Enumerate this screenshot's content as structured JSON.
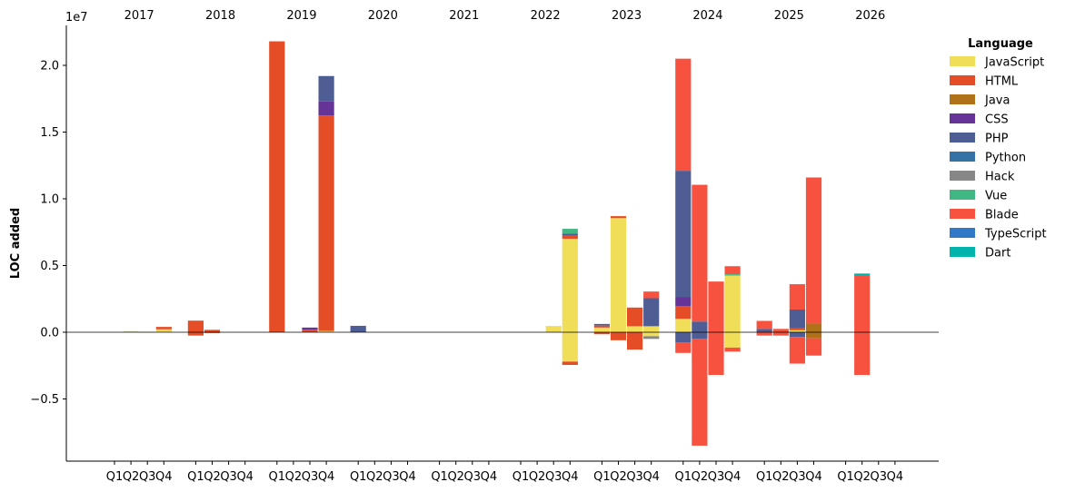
{
  "chart_data": {
    "type": "bar",
    "stacked": true,
    "diverging": true,
    "scale_label": "1e7",
    "ylabel": "LOC added",
    "ylim": [
      -9600000,
      23000000
    ],
    "y_ticks": [
      -5000000,
      0,
      5000000,
      10000000,
      15000000,
      20000000
    ],
    "y_tick_labels": [
      "−0.5",
      "0.0",
      "0.5",
      "1.0",
      "1.5",
      "2.0"
    ],
    "years": [
      "2017",
      "2018",
      "2019",
      "2020",
      "2021",
      "2022",
      "2023",
      "2024",
      "2025",
      "2026"
    ],
    "quarters": [
      "Q1",
      "Q2",
      "Q3",
      "Q4"
    ],
    "legend": {
      "title": "Language",
      "position": "right",
      "items": [
        {
          "name": "JavaScript",
          "color": "#f0de59"
        },
        {
          "name": "HTML",
          "color": "#e44d26"
        },
        {
          "name": "Java",
          "color": "#b07219"
        },
        {
          "name": "CSS",
          "color": "#663399"
        },
        {
          "name": "PHP",
          "color": "#4f5d95"
        },
        {
          "name": "Python",
          "color": "#3572a5"
        },
        {
          "name": "Hack",
          "color": "#878787"
        },
        {
          "name": "Vue",
          "color": "#41b883"
        },
        {
          "name": "Blade",
          "color": "#f7523f"
        },
        {
          "name": "TypeScript",
          "color": "#3178c6"
        },
        {
          "name": "Dart",
          "color": "#00b4ab"
        }
      ]
    },
    "bars": [
      {
        "year": "2017",
        "quarter": "Q2",
        "segments": [
          {
            "lang": "JavaScript",
            "value": 80000
          }
        ]
      },
      {
        "year": "2017",
        "quarter": "Q3",
        "segments": [
          {
            "lang": "JavaScript",
            "value": 40000
          }
        ]
      },
      {
        "year": "2017",
        "quarter": "Q4",
        "segments": [
          {
            "lang": "JavaScript",
            "value": 220000
          },
          {
            "lang": "HTML",
            "value": 180000
          }
        ]
      },
      {
        "year": "2018",
        "quarter": "Q1",
        "segments": [
          {
            "lang": "HTML",
            "value": 870000
          },
          {
            "lang": "HTML",
            "value": -250000
          }
        ]
      },
      {
        "year": "2018",
        "quarter": "Q2",
        "segments": [
          {
            "lang": "HTML",
            "value": 180000
          },
          {
            "lang": "HTML",
            "value": -60000
          }
        ]
      },
      {
        "year": "2019",
        "quarter": "Q1",
        "segments": [
          {
            "lang": "HTML",
            "value": 21800000
          }
        ]
      },
      {
        "year": "2019",
        "quarter": "Q3",
        "segments": [
          {
            "lang": "HTML",
            "value": 200000
          },
          {
            "lang": "CSS",
            "value": 150000
          }
        ]
      },
      {
        "year": "2019",
        "quarter": "Q4",
        "segments": [
          {
            "lang": "JavaScript",
            "value": 100000
          },
          {
            "lang": "HTML",
            "value": 16150000
          },
          {
            "lang": "CSS",
            "value": 1050000
          },
          {
            "lang": "PHP",
            "value": 1900000
          }
        ]
      },
      {
        "year": "2020",
        "quarter": "Q1",
        "segments": [
          {
            "lang": "PHP",
            "value": 480000
          }
        ]
      },
      {
        "year": "2022",
        "quarter": "Q3",
        "segments": [
          {
            "lang": "JavaScript",
            "value": 470000
          }
        ]
      },
      {
        "year": "2022",
        "quarter": "Q4",
        "segments": [
          {
            "lang": "JavaScript",
            "value": 7000000
          },
          {
            "lang": "HTML",
            "value": 250000
          },
          {
            "lang": "PHP",
            "value": 150000
          },
          {
            "lang": "Vue",
            "value": 350000
          },
          {
            "lang": "JavaScript",
            "value": -2200000
          },
          {
            "lang": "HTML",
            "value": -250000
          }
        ]
      },
      {
        "year": "2023",
        "quarter": "Q1",
        "segments": [
          {
            "lang": "JavaScript",
            "value": 350000
          },
          {
            "lang": "HTML",
            "value": 150000
          },
          {
            "lang": "PHP",
            "value": 120000
          },
          {
            "lang": "HTML",
            "value": -150000
          }
        ]
      },
      {
        "year": "2023",
        "quarter": "Q2",
        "segments": [
          {
            "lang": "JavaScript",
            "value": 8550000
          },
          {
            "lang": "HTML",
            "value": 150000
          },
          {
            "lang": "HTML",
            "value": -600000
          }
        ]
      },
      {
        "year": "2023",
        "quarter": "Q3",
        "segments": [
          {
            "lang": "JavaScript",
            "value": 450000
          },
          {
            "lang": "HTML",
            "value": 1400000
          },
          {
            "lang": "HTML",
            "value": -1300000
          }
        ]
      },
      {
        "year": "2023",
        "quarter": "Q4",
        "segments": [
          {
            "lang": "JavaScript",
            "value": 450000
          },
          {
            "lang": "PHP",
            "value": 2100000
          },
          {
            "lang": "Blade",
            "value": 500000
          },
          {
            "lang": "JavaScript",
            "value": -300000
          },
          {
            "lang": "Hack",
            "value": -200000
          }
        ]
      },
      {
        "year": "2024",
        "quarter": "Q1",
        "segments": [
          {
            "lang": "JavaScript",
            "value": 1000000
          },
          {
            "lang": "HTML",
            "value": 950000
          },
          {
            "lang": "CSS",
            "value": 700000
          },
          {
            "lang": "PHP",
            "value": 9450000
          },
          {
            "lang": "Blade",
            "value": 8400000
          },
          {
            "lang": "PHP",
            "value": -750000
          },
          {
            "lang": "Blade",
            "value": -800000
          }
        ]
      },
      {
        "year": "2024",
        "quarter": "Q2",
        "segments": [
          {
            "lang": "PHP",
            "value": 800000
          },
          {
            "lang": "Blade",
            "value": 10250000
          },
          {
            "lang": "PHP",
            "value": -500000
          },
          {
            "lang": "Blade",
            "value": -8000000
          }
        ]
      },
      {
        "year": "2024",
        "quarter": "Q3",
        "segments": [
          {
            "lang": "Blade",
            "value": 3800000
          },
          {
            "lang": "Blade",
            "value": -3200000
          }
        ]
      },
      {
        "year": "2024",
        "quarter": "Q4",
        "segments": [
          {
            "lang": "JavaScript",
            "value": 4250000
          },
          {
            "lang": "Vue",
            "value": 100000
          },
          {
            "lang": "Blade",
            "value": 600000
          },
          {
            "lang": "JavaScript",
            "value": -1150000
          },
          {
            "lang": "Blade",
            "value": -300000
          }
        ]
      },
      {
        "year": "2025",
        "quarter": "Q1",
        "segments": [
          {
            "lang": "PHP",
            "value": 250000
          },
          {
            "lang": "Blade",
            "value": 600000
          },
          {
            "lang": "Blade",
            "value": -250000
          }
        ]
      },
      {
        "year": "2025",
        "quarter": "Q2",
        "segments": [
          {
            "lang": "HTML",
            "value": 100000
          },
          {
            "lang": "Blade",
            "value": 150000
          },
          {
            "lang": "Blade",
            "value": -250000
          }
        ]
      },
      {
        "year": "2025",
        "quarter": "Q3",
        "segments": [
          {
            "lang": "JavaScript",
            "value": 150000
          },
          {
            "lang": "HTML",
            "value": 150000
          },
          {
            "lang": "PHP",
            "value": 1400000
          },
          {
            "lang": "Blade",
            "value": 1900000
          },
          {
            "lang": "PHP",
            "value": -350000
          },
          {
            "lang": "Blade",
            "value": -2000000
          }
        ]
      },
      {
        "year": "2025",
        "quarter": "Q4",
        "segments": [
          {
            "lang": "Java",
            "value": 650000
          },
          {
            "lang": "Blade",
            "value": 10950000
          },
          {
            "lang": "Java",
            "value": -450000
          },
          {
            "lang": "Blade",
            "value": -1300000
          }
        ]
      },
      {
        "year": "2026",
        "quarter": "Q2",
        "segments": [
          {
            "lang": "Blade",
            "value": 4250000
          },
          {
            "lang": "Dart",
            "value": 150000
          },
          {
            "lang": "Blade",
            "value": -3200000
          }
        ]
      }
    ]
  }
}
